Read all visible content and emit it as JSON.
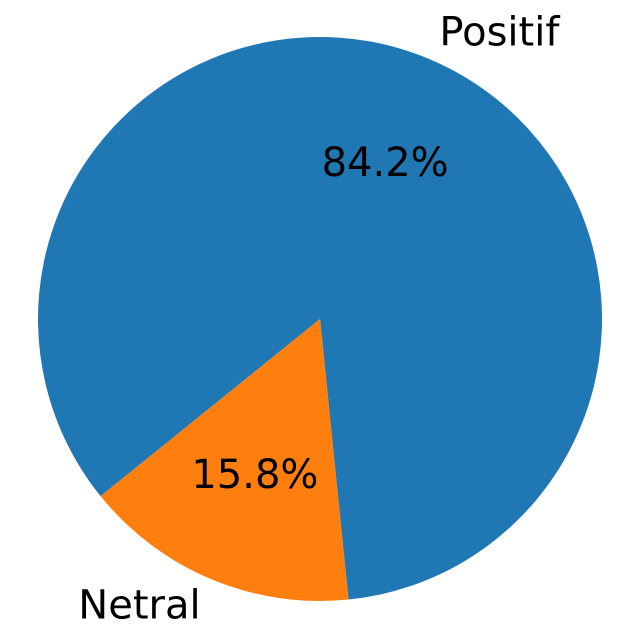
{
  "chart_data": {
    "type": "pie",
    "slices": [
      {
        "label": "Positif",
        "value": 84.2,
        "pct_label": "84.2%",
        "color": "#1f77b4"
      },
      {
        "label": "Netral",
        "value": 15.8,
        "pct_label": "15.8%",
        "color": "#ff7f0e"
      }
    ],
    "title": "",
    "legend": "none",
    "start_angle_deg": -84.2,
    "counterclockwise": true
  }
}
